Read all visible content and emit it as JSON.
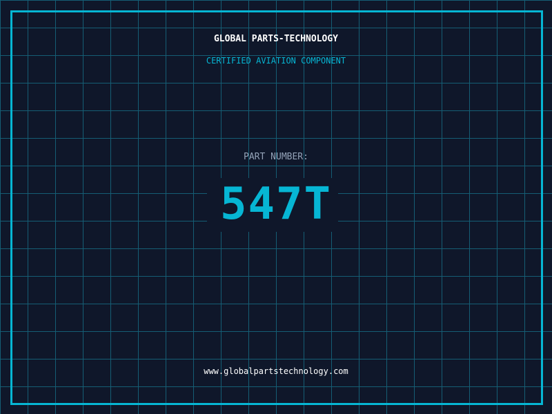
{
  "header": {
    "title": "GLOBAL PARTS-TECHNOLOGY",
    "subtitle": "CERTIFIED AVIATION COMPONENT"
  },
  "part": {
    "label": "PART NUMBER:",
    "number": "547T"
  },
  "footer": {
    "url": "www.globalpartstechnology.com"
  },
  "colors": {
    "background": "#0f172a",
    "accent": "#06b6d4",
    "grid": "#155e75",
    "label": "#94a3b8"
  }
}
